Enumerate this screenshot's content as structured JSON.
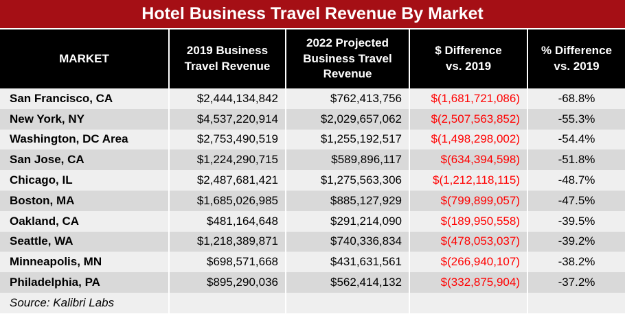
{
  "title": "Hotel Business Travel Revenue By Market",
  "source": "Source: Kalibri Labs",
  "chart_data": {
    "type": "table",
    "title": "Hotel Business Travel Revenue By Market",
    "columns": [
      "MARKET",
      "2019 Business Travel Revenue",
      "2022 Projected Business Travel Revenue",
      "$ Difference vs. 2019",
      "% Difference vs. 2019"
    ],
    "rows": [
      {
        "market": "San Francisco, CA",
        "rev2019": "$2,444,134,842",
        "rev2022": "$762,413,756",
        "diff": "$(1,681,721,086)",
        "pct": "-68.8%"
      },
      {
        "market": "New York, NY",
        "rev2019": "$4,537,220,914",
        "rev2022": "$2,029,657,062",
        "diff": "$(2,507,563,852)",
        "pct": "-55.3%"
      },
      {
        "market": "Washington, DC Area",
        "rev2019": "$2,753,490,519",
        "rev2022": "$1,255,192,517",
        "diff": "$(1,498,298,002)",
        "pct": "-54.4%"
      },
      {
        "market": "San Jose, CA",
        "rev2019": "$1,224,290,715",
        "rev2022": "$589,896,117",
        "diff": "$(634,394,598)",
        "pct": "-51.8%"
      },
      {
        "market": "Chicago, IL",
        "rev2019": "$2,487,681,421",
        "rev2022": "$1,275,563,306",
        "diff": "$(1,212,118,115)",
        "pct": "-48.7%"
      },
      {
        "market": "Boston, MA",
        "rev2019": "$1,685,026,985",
        "rev2022": "$885,127,929",
        "diff": "$(799,899,057)",
        "pct": "-47.5%"
      },
      {
        "market": "Oakland, CA",
        "rev2019": "$481,164,648",
        "rev2022": "$291,214,090",
        "diff": "$(189,950,558)",
        "pct": "-39.5%"
      },
      {
        "market": "Seattle, WA",
        "rev2019": "$1,218,389,871",
        "rev2022": "$740,336,834",
        "diff": "$(478,053,037)",
        "pct": "-39.2%"
      },
      {
        "market": "Minneapolis, MN",
        "rev2019": "$698,571,668",
        "rev2022": "$431,631,561",
        "diff": "$(266,940,107)",
        "pct": "-38.2%"
      },
      {
        "market": "Philadelphia, PA",
        "rev2019": "$895,290,036",
        "rev2022": "$562,414,132",
        "diff": "$(332,875,904)",
        "pct": "-37.2%"
      }
    ]
  }
}
